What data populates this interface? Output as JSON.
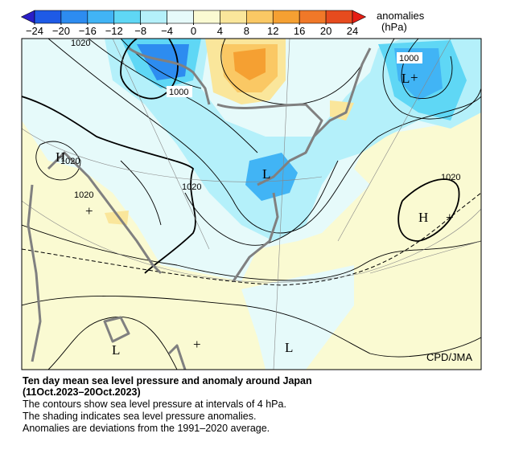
{
  "colorbar": {
    "title": "anomalies",
    "unit": "(hPa)",
    "ticks": [
      {
        "value": -24,
        "label": "−24"
      },
      {
        "value": -20,
        "label": "−20"
      },
      {
        "value": -16,
        "label": "−16"
      },
      {
        "value": -12,
        "label": "−12"
      },
      {
        "value": -8,
        "label": "−8"
      },
      {
        "value": -4,
        "label": "−4"
      },
      0,
      4,
      8,
      12,
      16,
      20,
      24
    ],
    "colors": [
      "#2a1ec8",
      "#1e5ae6",
      "#2d8cf0",
      "#41b4f5",
      "#5fd7f5",
      "#b4f0fa",
      "#e6fafa",
      "#fafad2",
      "#fae69b",
      "#fac864",
      "#f5a032",
      "#f07828",
      "#e64b1e",
      "#e61e14"
    ]
  },
  "map": {
    "contour_labels": [
      "1020",
      "1000",
      "1000",
      "1020",
      "1020",
      "1020",
      "1020"
    ],
    "centers": [
      "H",
      "H",
      "L",
      "L",
      "L",
      "L",
      "+",
      "+",
      "+",
      "+"
    ],
    "credit": "CPD/JMA"
  },
  "caption": {
    "title": "Ten day mean sea level pressure and anomaly around Japan",
    "period": "(11Oct.2023–20Oct.2023)",
    "lines": [
      "The contours show sea level pressure at intervals of 4 hPa.",
      "The shading indicates sea level pressure anomalies.",
      "Anomalies are deviations from the 1991–2020 average."
    ]
  }
}
